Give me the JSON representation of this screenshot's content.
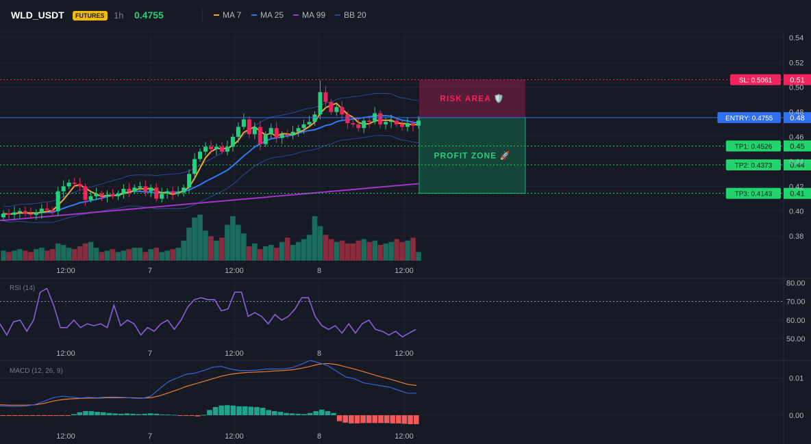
{
  "header": {
    "symbol": "WLD_USDT",
    "badge": "FUTURES",
    "interval": "1h",
    "price": "0.4755",
    "legend": [
      {
        "name": "MA 7",
        "color": "#f7a531"
      },
      {
        "name": "MA 25",
        "color": "#2f7cf6"
      },
      {
        "name": "MA 99",
        "color": "#a335c9"
      },
      {
        "name": "BB 20",
        "color": "#2b4a96"
      }
    ]
  },
  "colors": {
    "up": "#26d07c",
    "down": "#f0245d",
    "volUp": "#1a6b5c",
    "volDown": "#8a2c3f",
    "rsi": "#8c5fd8",
    "macd": "#3b62d9",
    "signal": "#f07e30"
  },
  "chart_data": [
    {
      "type": "candlestick",
      "title": "WLD_USDT",
      "ylim": [
        0.36,
        0.545
      ],
      "y_ticks": [
        "0.54",
        "0.52",
        "0.50",
        "0.48",
        "0.46",
        "0.44",
        "0.42",
        "0.40",
        "0.38"
      ],
      "x_ticks": [
        "12:00",
        "7",
        "12:00",
        "8",
        "12:00"
      ],
      "closes": [
        0.398,
        0.397,
        0.399,
        0.4,
        0.398,
        0.397,
        0.399,
        0.402,
        0.401,
        0.4,
        0.416,
        0.42,
        0.423,
        0.422,
        0.42,
        0.409,
        0.412,
        0.414,
        0.412,
        0.413,
        0.412,
        0.414,
        0.418,
        0.416,
        0.419,
        0.42,
        0.416,
        0.419,
        0.41,
        0.414,
        0.416,
        0.414,
        0.415,
        0.419,
        0.43,
        0.442,
        0.448,
        0.452,
        0.45,
        0.452,
        0.448,
        0.452,
        0.46,
        0.468,
        0.474,
        0.462,
        0.468,
        0.454,
        0.462,
        0.467,
        0.459,
        0.462,
        0.461,
        0.464,
        0.467,
        0.47,
        0.472,
        0.478,
        0.496,
        0.488,
        0.48,
        0.484,
        0.478,
        0.471,
        0.47,
        0.467,
        0.473,
        0.472,
        0.479,
        0.47,
        0.472,
        0.473,
        0.47,
        0.468,
        0.471,
        0.469,
        0.473
      ],
      "volumes": [
        7,
        6,
        7,
        8,
        7,
        6,
        8,
        9,
        7,
        8,
        12,
        11,
        9,
        8,
        10,
        12,
        13,
        9,
        6,
        7,
        8,
        6,
        7,
        8,
        9,
        9,
        6,
        8,
        9,
        6,
        7,
        8,
        9,
        14,
        23,
        30,
        32,
        21,
        17,
        14,
        16,
        25,
        31,
        25,
        19,
        10,
        12,
        8,
        10,
        11,
        9,
        13,
        16,
        11,
        13,
        15,
        18,
        31,
        24,
        18,
        15,
        13,
        14,
        12,
        12,
        14,
        15,
        13,
        14,
        11,
        12,
        13,
        15,
        13,
        14,
        16,
        6
      ],
      "sl": {
        "label": "SL: 0.5061",
        "value": 0.5061,
        "tick": "0.51"
      },
      "entry": {
        "label": "ENTRY: 0.4755",
        "value": 0.4755,
        "tick": "0.48"
      },
      "tps": [
        {
          "label": "TP1: 0.4526",
          "value": 0.4526,
          "tick": "0.45"
        },
        {
          "label": "TP2: 0.4373",
          "value": 0.4373,
          "tick": "0.44"
        },
        {
          "label": "TP3: 0.4143",
          "value": 0.4143,
          "tick": "0.41"
        }
      ],
      "risk_label": "RISK AREA 🛡️",
      "profit_label": "PROFIT ZONE 🚀"
    },
    {
      "type": "line",
      "title": "RSI (14)",
      "ylim": [
        46,
        82
      ],
      "y_ticks": [
        "80.00",
        "70.00",
        "60.00",
        "50.00"
      ],
      "x_ticks": [
        "12:00",
        "7",
        "12:00",
        "8",
        "12:00"
      ],
      "values": [
        58,
        52,
        59,
        60,
        54,
        60,
        75,
        77,
        68,
        56,
        56,
        60,
        56,
        58,
        57,
        58,
        56,
        68,
        57,
        60,
        58,
        52,
        56,
        54,
        58,
        60,
        55,
        60,
        67,
        71,
        72,
        71,
        71,
        65,
        66,
        75,
        75,
        62,
        64,
        62,
        58,
        63,
        60,
        62,
        66,
        72,
        72,
        62,
        57,
        55,
        57,
        53,
        58,
        53,
        58,
        60,
        55,
        54,
        52,
        54,
        51,
        53,
        55
      ],
      "dashed_level": 70
    },
    {
      "type": "line",
      "title": "MACD (12, 26, 9)",
      "ylim": [
        -0.0035,
        0.0145
      ],
      "y_ticks": [
        "0.01",
        "0.00"
      ],
      "x_ticks": [
        "12:00",
        "7",
        "12:00",
        "8",
        "12:00"
      ],
      "macd": [
        0.0025,
        0.0024,
        0.0024,
        0.0025,
        0.0029,
        0.0038,
        0.0047,
        0.0051,
        0.0049,
        0.0046,
        0.0048,
        0.0047,
        0.0049,
        0.0049,
        0.0048,
        0.0046,
        0.0045,
        0.0051,
        0.0071,
        0.009,
        0.01,
        0.011,
        0.0113,
        0.012,
        0.0129,
        0.0131,
        0.0124,
        0.012,
        0.012,
        0.0121,
        0.0124,
        0.0124,
        0.0124,
        0.0128,
        0.0137,
        0.0147,
        0.0141,
        0.0133,
        0.0118,
        0.0103,
        0.0098,
        0.0087,
        0.0083,
        0.0079,
        0.0075,
        0.0067,
        0.0059,
        0.0059
      ],
      "signal": [
        0.0028,
        0.0027,
        0.0027,
        0.0027,
        0.0028,
        0.0032,
        0.0038,
        0.0042,
        0.0044,
        0.0045,
        0.0046,
        0.0046,
        0.0047,
        0.0047,
        0.0047,
        0.0047,
        0.0046,
        0.0047,
        0.0052,
        0.006,
        0.0068,
        0.0077,
        0.0084,
        0.0091,
        0.0098,
        0.0105,
        0.011,
        0.0113,
        0.0115,
        0.0116,
        0.0117,
        0.0119,
        0.012,
        0.0122,
        0.0126,
        0.0131,
        0.0137,
        0.0139,
        0.0136,
        0.013,
        0.0124,
        0.0117,
        0.011,
        0.0103,
        0.0097,
        0.009,
        0.0083,
        0.008
      ],
      "hist": [
        -0.0002,
        -0.0002,
        -0.0002,
        -0.0002,
        -0.0002,
        -0.0002,
        -0.0002,
        -0.0002,
        -0.0002,
        -0.0001,
        -0.0001,
        -0.0001,
        0.0003,
        0.0008,
        0.0011,
        0.0011,
        0.0009,
        0.0008,
        0.0006,
        0.0005,
        0.0004,
        0.0005,
        0.0004,
        0.0003,
        0.0004,
        0.0005,
        0.0004,
        0.0002,
        0.0002,
        0.0001,
        -0.0001,
        -0.0001,
        -0.0002,
        -0.0003,
        0.0001,
        0.0014,
        0.0022,
        0.0026,
        0.0027,
        0.0026,
        0.0024,
        0.0024,
        0.0023,
        0.0022,
        0.002,
        0.0014,
        0.0011,
        0.0009,
        0.0006,
        0.0005,
        0.0004,
        0.0003,
        0.0006,
        0.0011,
        0.0015,
        0.0011,
        0.0006,
        -0.0016,
        -0.002,
        -0.0022,
        -0.0022,
        -0.0021,
        -0.0021,
        -0.0021,
        -0.0021,
        -0.0021,
        -0.0022,
        -0.0022,
        -0.0023,
        -0.0024,
        -0.0024
      ]
    }
  ]
}
